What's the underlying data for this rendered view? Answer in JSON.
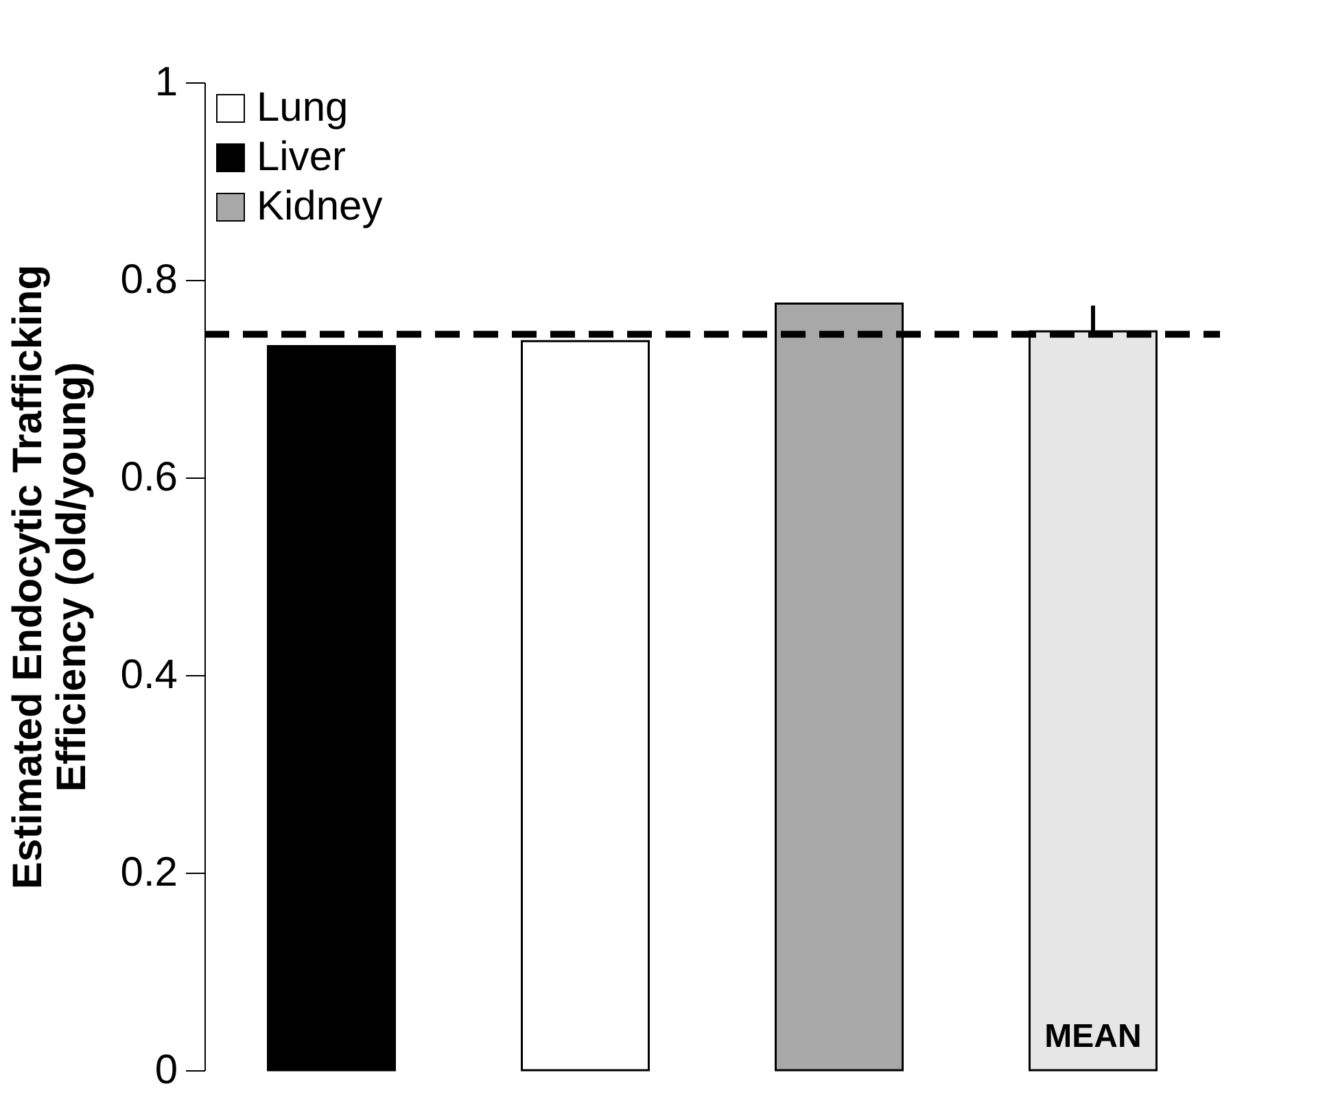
{
  "chart_data": {
    "type": "bar",
    "ylabel": "Estimated Endocytic Trafficking\nEfficiency (old/young)",
    "categories": [
      null,
      null,
      null,
      null
    ],
    "series": [
      {
        "name": "Lung",
        "color": "#ffffff",
        "values": [
          null,
          0.738,
          null,
          null
        ]
      },
      {
        "name": "Liver",
        "color": "#000000",
        "values": [
          0.733,
          null,
          null,
          null
        ]
      },
      {
        "name": "Kidney",
        "color": "#a8a8a8",
        "values": [
          null,
          null,
          0.776,
          null
        ]
      },
      {
        "color": "#e6e6e6",
        "values": [
          null,
          null,
          null,
          0.748
        ],
        "errors": [
          null,
          null,
          null,
          0.026
        ]
      }
    ],
    "ylim": [
      0,
      1
    ],
    "yticks": [
      0,
      0.2,
      0.4,
      0.6,
      0.8,
      1
    ],
    "ref_lines": [
      {
        "axis": "y",
        "value": 0.745,
        "line_style": "dashed",
        "color": "#000000"
      }
    ],
    "annotations": [
      "MEAN"
    ],
    "legend": "top left",
    "grid": false,
    "tick_labels": "y"
  }
}
